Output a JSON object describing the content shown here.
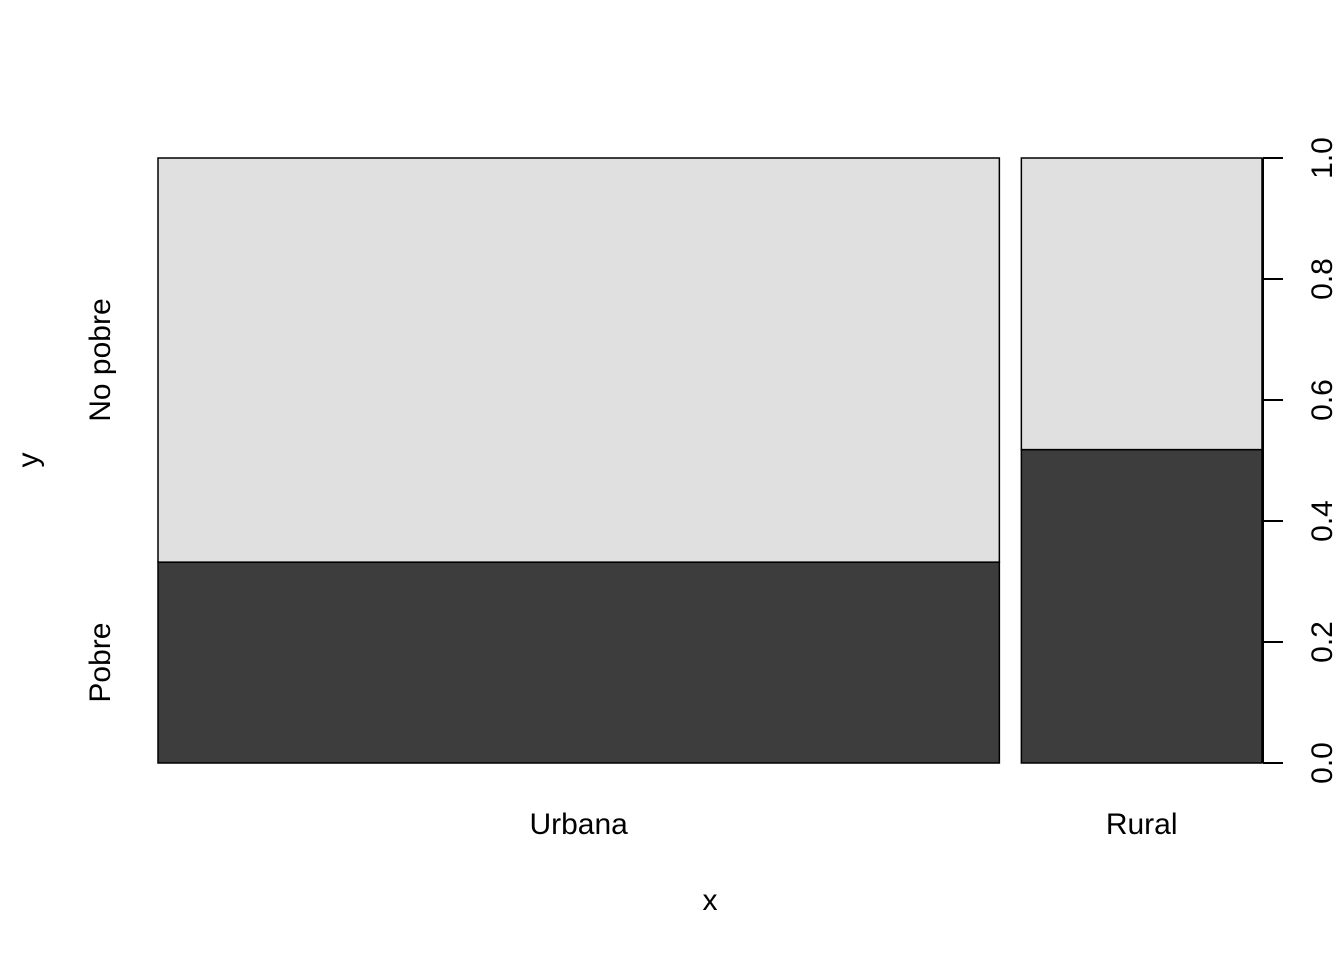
{
  "chart_data": {
    "type": "spineplot",
    "title": "",
    "xlabel": "x",
    "ylabel": "y",
    "categories": [
      "Urbana",
      "Rural"
    ],
    "x_proportions": [
      0.7776,
      0.2224
    ],
    "series": [
      {
        "name": "Pobre",
        "values": [
          0.332,
          0.518
        ],
        "color": "#3d3d3d"
      },
      {
        "name": "No pobre",
        "values": [
          0.668,
          0.482
        ],
        "color": "#e0e0e0"
      }
    ],
    "ylim": [
      0,
      1
    ],
    "right_axis_ticks": [
      "0.0",
      "0.2",
      "0.4",
      "0.6",
      "0.8",
      "1.0"
    ],
    "left_labels": [
      "Pobre",
      "No pobre"
    ]
  }
}
